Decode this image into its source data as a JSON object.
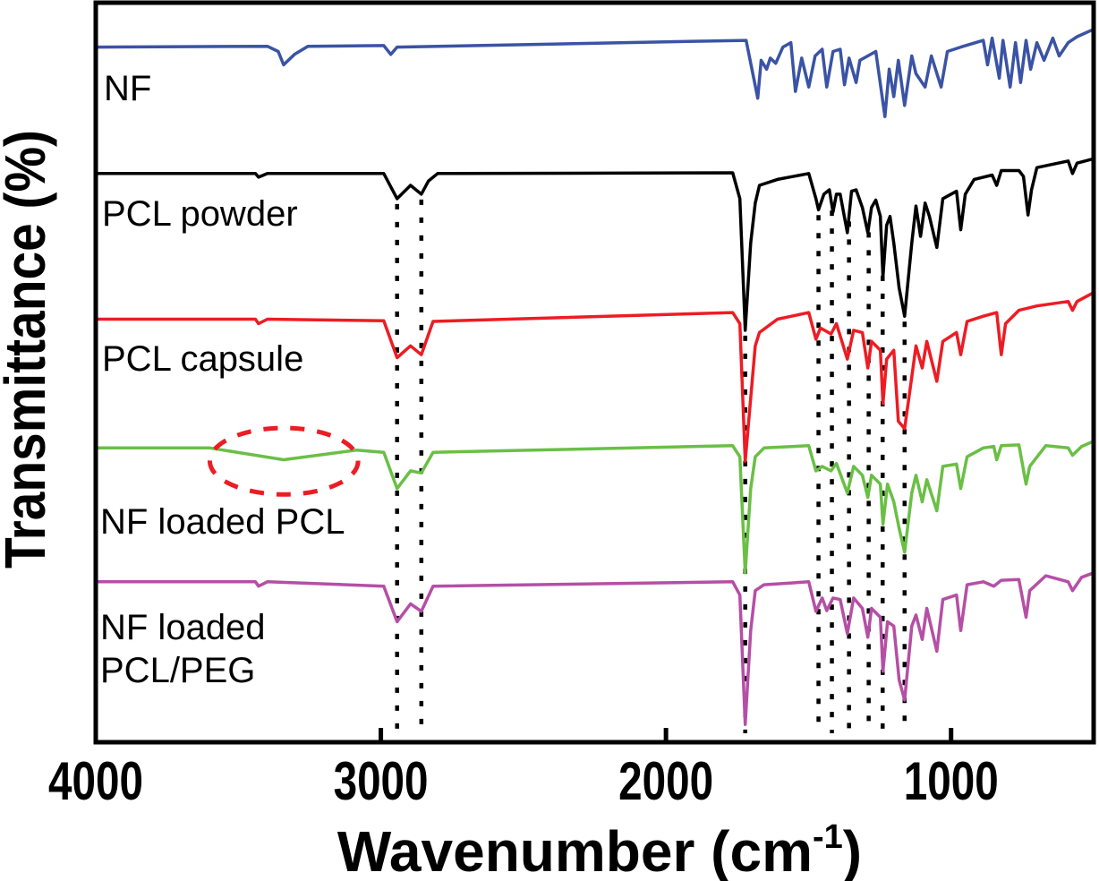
{
  "chart_data": {
    "type": "line",
    "title": "",
    "xlabel": "Wavenumber (cm",
    "xlabel_superscript": "-1",
    "xlabel_suffix": ")",
    "ylabel": "Transmittance (%)",
    "xlim": [
      4000,
      500
    ],
    "x_reversed": true,
    "ylim": [
      0,
      100
    ],
    "y_ticks_shown": false,
    "grid": false,
    "x_ticks": [
      4000,
      3000,
      2000,
      1000
    ],
    "x_tick_labels": [
      "4000",
      "3000",
      "2000",
      "1000"
    ],
    "series": [
      {
        "name": "NF",
        "label_lines": [
          "NF"
        ],
        "color": "#3a53a4",
        "points": [
          [
            4000,
            94.0
          ],
          [
            3398,
            94.1
          ],
          [
            3360,
            93.4
          ],
          [
            3341,
            91.6
          ],
          [
            3303,
            93.0
          ],
          [
            3256,
            94.1
          ],
          [
            2990,
            94.2
          ],
          [
            2965,
            93.0
          ],
          [
            2943,
            94.0
          ],
          [
            2142,
            94.6
          ],
          [
            1719,
            94.9
          ],
          [
            1678,
            87.1
          ],
          [
            1666,
            92.2
          ],
          [
            1647,
            91.0
          ],
          [
            1634,
            92.5
          ],
          [
            1615,
            91.8
          ],
          [
            1590,
            94.0
          ],
          [
            1562,
            94.6
          ],
          [
            1546,
            88.0
          ],
          [
            1524,
            92.5
          ],
          [
            1499,
            88.6
          ],
          [
            1477,
            92.8
          ],
          [
            1452,
            93.7
          ],
          [
            1436,
            88.6
          ],
          [
            1414,
            93.4
          ],
          [
            1389,
            93.7
          ],
          [
            1374,
            88.9
          ],
          [
            1358,
            92.5
          ],
          [
            1333,
            89.2
          ],
          [
            1320,
            92.2
          ],
          [
            1264,
            93.4
          ],
          [
            1232,
            84.6
          ],
          [
            1217,
            91.0
          ],
          [
            1201,
            87.3
          ],
          [
            1185,
            92.2
          ],
          [
            1163,
            86.1
          ],
          [
            1138,
            92.8
          ],
          [
            1123,
            90.4
          ],
          [
            1091,
            88.6
          ],
          [
            1069,
            92.8
          ],
          [
            1035,
            88.6
          ],
          [
            1013,
            93.4
          ],
          [
            966,
            94.0
          ],
          [
            887,
            94.9
          ],
          [
            872,
            91.6
          ],
          [
            856,
            95.2
          ],
          [
            831,
            89.8
          ],
          [
            818,
            94.9
          ],
          [
            793,
            88.6
          ],
          [
            774,
            94.6
          ],
          [
            756,
            89.2
          ],
          [
            737,
            94.9
          ],
          [
            721,
            91.0
          ],
          [
            699,
            94.6
          ],
          [
            674,
            92.2
          ],
          [
            643,
            95.2
          ],
          [
            621,
            92.8
          ],
          [
            589,
            94.6
          ],
          [
            558,
            95.4
          ],
          [
            500,
            96.4
          ]
        ]
      },
      {
        "name": "PCL powder",
        "label_lines": [
          "PCL powder"
        ],
        "color": "#000000",
        "points": [
          [
            4000,
            76.9
          ],
          [
            3440,
            76.9
          ],
          [
            3429,
            76.4
          ],
          [
            3398,
            76.9
          ],
          [
            2990,
            76.9
          ],
          [
            2943,
            73.5
          ],
          [
            2896,
            75.3
          ],
          [
            2858,
            74.1
          ],
          [
            2833,
            75.9
          ],
          [
            2801,
            76.9
          ],
          [
            1766,
            77.0
          ],
          [
            1741,
            73.5
          ],
          [
            1722,
            55.7
          ],
          [
            1703,
            67.5
          ],
          [
            1687,
            72.9
          ],
          [
            1672,
            75.3
          ],
          [
            1609,
            76.1
          ],
          [
            1499,
            76.9
          ],
          [
            1474,
            73.5
          ],
          [
            1465,
            72.0
          ],
          [
            1446,
            74.1
          ],
          [
            1427,
            74.7
          ],
          [
            1414,
            71.7
          ],
          [
            1402,
            74.1
          ],
          [
            1389,
            74.1
          ],
          [
            1364,
            68.9
          ],
          [
            1349,
            74.5
          ],
          [
            1333,
            74.7
          ],
          [
            1311,
            72.3
          ],
          [
            1292,
            68.9
          ],
          [
            1279,
            72.3
          ],
          [
            1264,
            73.3
          ],
          [
            1248,
            71.1
          ],
          [
            1239,
            62.9
          ],
          [
            1226,
            69.9
          ],
          [
            1214,
            71.1
          ],
          [
            1201,
            67.5
          ],
          [
            1182,
            61.4
          ],
          [
            1163,
            57.6
          ],
          [
            1138,
            67.5
          ],
          [
            1123,
            72.5
          ],
          [
            1107,
            68.4
          ],
          [
            1091,
            72.9
          ],
          [
            1076,
            71.1
          ],
          [
            1050,
            66.9
          ],
          [
            1029,
            73.5
          ],
          [
            981,
            74.5
          ],
          [
            966,
            69.3
          ],
          [
            950,
            74.1
          ],
          [
            919,
            76.1
          ],
          [
            856,
            76.7
          ],
          [
            840,
            75.3
          ],
          [
            824,
            77.3
          ],
          [
            762,
            77.3
          ],
          [
            746,
            76.5
          ],
          [
            730,
            71.3
          ],
          [
            718,
            74.7
          ],
          [
            699,
            77.7
          ],
          [
            589,
            78.6
          ],
          [
            574,
            76.9
          ],
          [
            558,
            78.3
          ],
          [
            500,
            78.9
          ]
        ]
      },
      {
        "name": "PCL capsule",
        "label_lines": [
          "PCL capsule"
        ],
        "color": "#ed1c24",
        "points": [
          [
            4000,
            57.2
          ],
          [
            3440,
            57.2
          ],
          [
            3429,
            56.6
          ],
          [
            3398,
            57.2
          ],
          [
            2990,
            57.0
          ],
          [
            2943,
            52.0
          ],
          [
            2896,
            53.6
          ],
          [
            2858,
            52.4
          ],
          [
            2817,
            56.9
          ],
          [
            1766,
            58.1
          ],
          [
            1741,
            56.6
          ],
          [
            1722,
            38.0
          ],
          [
            1687,
            53.6
          ],
          [
            1672,
            55.4
          ],
          [
            1609,
            57.2
          ],
          [
            1499,
            58.1
          ],
          [
            1474,
            54.5
          ],
          [
            1458,
            56.0
          ],
          [
            1421,
            55.2
          ],
          [
            1402,
            56.6
          ],
          [
            1364,
            51.8
          ],
          [
            1342,
            55.7
          ],
          [
            1311,
            55.4
          ],
          [
            1292,
            50.6
          ],
          [
            1279,
            54.2
          ],
          [
            1248,
            53.0
          ],
          [
            1239,
            45.8
          ],
          [
            1226,
            51.8
          ],
          [
            1201,
            53.0
          ],
          [
            1185,
            43.4
          ],
          [
            1163,
            42.4
          ],
          [
            1138,
            49.4
          ],
          [
            1123,
            53.6
          ],
          [
            1101,
            50.6
          ],
          [
            1085,
            54.2
          ],
          [
            1050,
            48.8
          ],
          [
            1029,
            54.2
          ],
          [
            981,
            55.4
          ],
          [
            966,
            52.4
          ],
          [
            944,
            56.9
          ],
          [
            887,
            57.6
          ],
          [
            840,
            58.1
          ],
          [
            824,
            52.4
          ],
          [
            809,
            56.6
          ],
          [
            762,
            58.4
          ],
          [
            699,
            59.0
          ],
          [
            589,
            59.6
          ],
          [
            574,
            58.4
          ],
          [
            558,
            59.6
          ],
          [
            500,
            60.8
          ]
        ]
      },
      {
        "name": "NF loaded PCL",
        "label_lines": [
          "NF loaded PCL"
        ],
        "color": "#6abf45",
        "points": [
          [
            4000,
            39.8
          ],
          [
            3600,
            39.8
          ],
          [
            3341,
            38.2
          ],
          [
            3084,
            39.5
          ],
          [
            2990,
            39.2
          ],
          [
            2943,
            34.3
          ],
          [
            2896,
            36.7
          ],
          [
            2858,
            36.4
          ],
          [
            2817,
            39.2
          ],
          [
            1766,
            40.1
          ],
          [
            1741,
            38.6
          ],
          [
            1722,
            22.9
          ],
          [
            1703,
            34.3
          ],
          [
            1687,
            38.6
          ],
          [
            1656,
            39.8
          ],
          [
            1499,
            40.1
          ],
          [
            1474,
            36.7
          ],
          [
            1452,
            37.3
          ],
          [
            1421,
            36.7
          ],
          [
            1402,
            37.7
          ],
          [
            1364,
            33.7
          ],
          [
            1342,
            37.3
          ],
          [
            1311,
            36.1
          ],
          [
            1292,
            33.1
          ],
          [
            1279,
            36.1
          ],
          [
            1248,
            34.9
          ],
          [
            1239,
            29.5
          ],
          [
            1223,
            34.9
          ],
          [
            1201,
            32.5
          ],
          [
            1182,
            28.9
          ],
          [
            1163,
            25.7
          ],
          [
            1138,
            33.7
          ],
          [
            1123,
            36.1
          ],
          [
            1101,
            32.5
          ],
          [
            1085,
            35.5
          ],
          [
            1050,
            31.3
          ],
          [
            1029,
            37.3
          ],
          [
            981,
            37.6
          ],
          [
            966,
            34.3
          ],
          [
            944,
            38.6
          ],
          [
            887,
            39.8
          ],
          [
            850,
            40.0
          ],
          [
            840,
            38.2
          ],
          [
            824,
            40.1
          ],
          [
            762,
            40.2
          ],
          [
            737,
            34.9
          ],
          [
            724,
            37.3
          ],
          [
            668,
            40.1
          ],
          [
            589,
            39.8
          ],
          [
            574,
            38.8
          ],
          [
            542,
            40.0
          ],
          [
            500,
            40.7
          ]
        ]
      },
      {
        "name": "NF loaded PCL/PEG",
        "label_lines": [
          "NF loaded",
          "PCL/PEG"
        ],
        "color": "#b54fa5",
        "points": [
          [
            4000,
            21.7
          ],
          [
            3440,
            21.7
          ],
          [
            3429,
            21.1
          ],
          [
            3398,
            21.7
          ],
          [
            2990,
            21.1
          ],
          [
            2943,
            16.3
          ],
          [
            2896,
            18.7
          ],
          [
            2858,
            17.7
          ],
          [
            2817,
            21.1
          ],
          [
            1766,
            21.7
          ],
          [
            1741,
            19.9
          ],
          [
            1722,
            2.4
          ],
          [
            1703,
            15.1
          ],
          [
            1687,
            20.5
          ],
          [
            1656,
            21.3
          ],
          [
            1499,
            21.7
          ],
          [
            1474,
            17.7
          ],
          [
            1452,
            19.5
          ],
          [
            1436,
            17.8
          ],
          [
            1414,
            19.5
          ],
          [
            1389,
            19.3
          ],
          [
            1364,
            14.7
          ],
          [
            1342,
            19.5
          ],
          [
            1311,
            18.1
          ],
          [
            1292,
            14.2
          ],
          [
            1279,
            18.1
          ],
          [
            1248,
            16.9
          ],
          [
            1239,
            9.6
          ],
          [
            1223,
            16.3
          ],
          [
            1201,
            15.7
          ],
          [
            1182,
            8.4
          ],
          [
            1163,
            5.7
          ],
          [
            1138,
            15.7
          ],
          [
            1123,
            17.2
          ],
          [
            1101,
            13.9
          ],
          [
            1085,
            18.1
          ],
          [
            1050,
            12.3
          ],
          [
            1029,
            19.3
          ],
          [
            981,
            19.9
          ],
          [
            966,
            15.1
          ],
          [
            944,
            21.3
          ],
          [
            887,
            21.7
          ],
          [
            850,
            21.1
          ],
          [
            824,
            21.9
          ],
          [
            762,
            22.0
          ],
          [
            737,
            16.9
          ],
          [
            724,
            20.5
          ],
          [
            668,
            22.5
          ],
          [
            589,
            21.7
          ],
          [
            574,
            20.5
          ],
          [
            542,
            22.3
          ],
          [
            500,
            22.9
          ]
        ]
      }
    ],
    "reference_lines": {
      "style": "dotted",
      "color": "#000000",
      "x": [
        2943,
        2858,
        1722,
        1465,
        1418,
        1358,
        1289,
        1240,
        1163
      ]
    },
    "highlight": {
      "shape": "dashed-ellipse",
      "color": "#ed1c24",
      "x_range": [
        3600,
        3080
      ],
      "y_range": [
        33.5,
        42.5
      ]
    }
  }
}
